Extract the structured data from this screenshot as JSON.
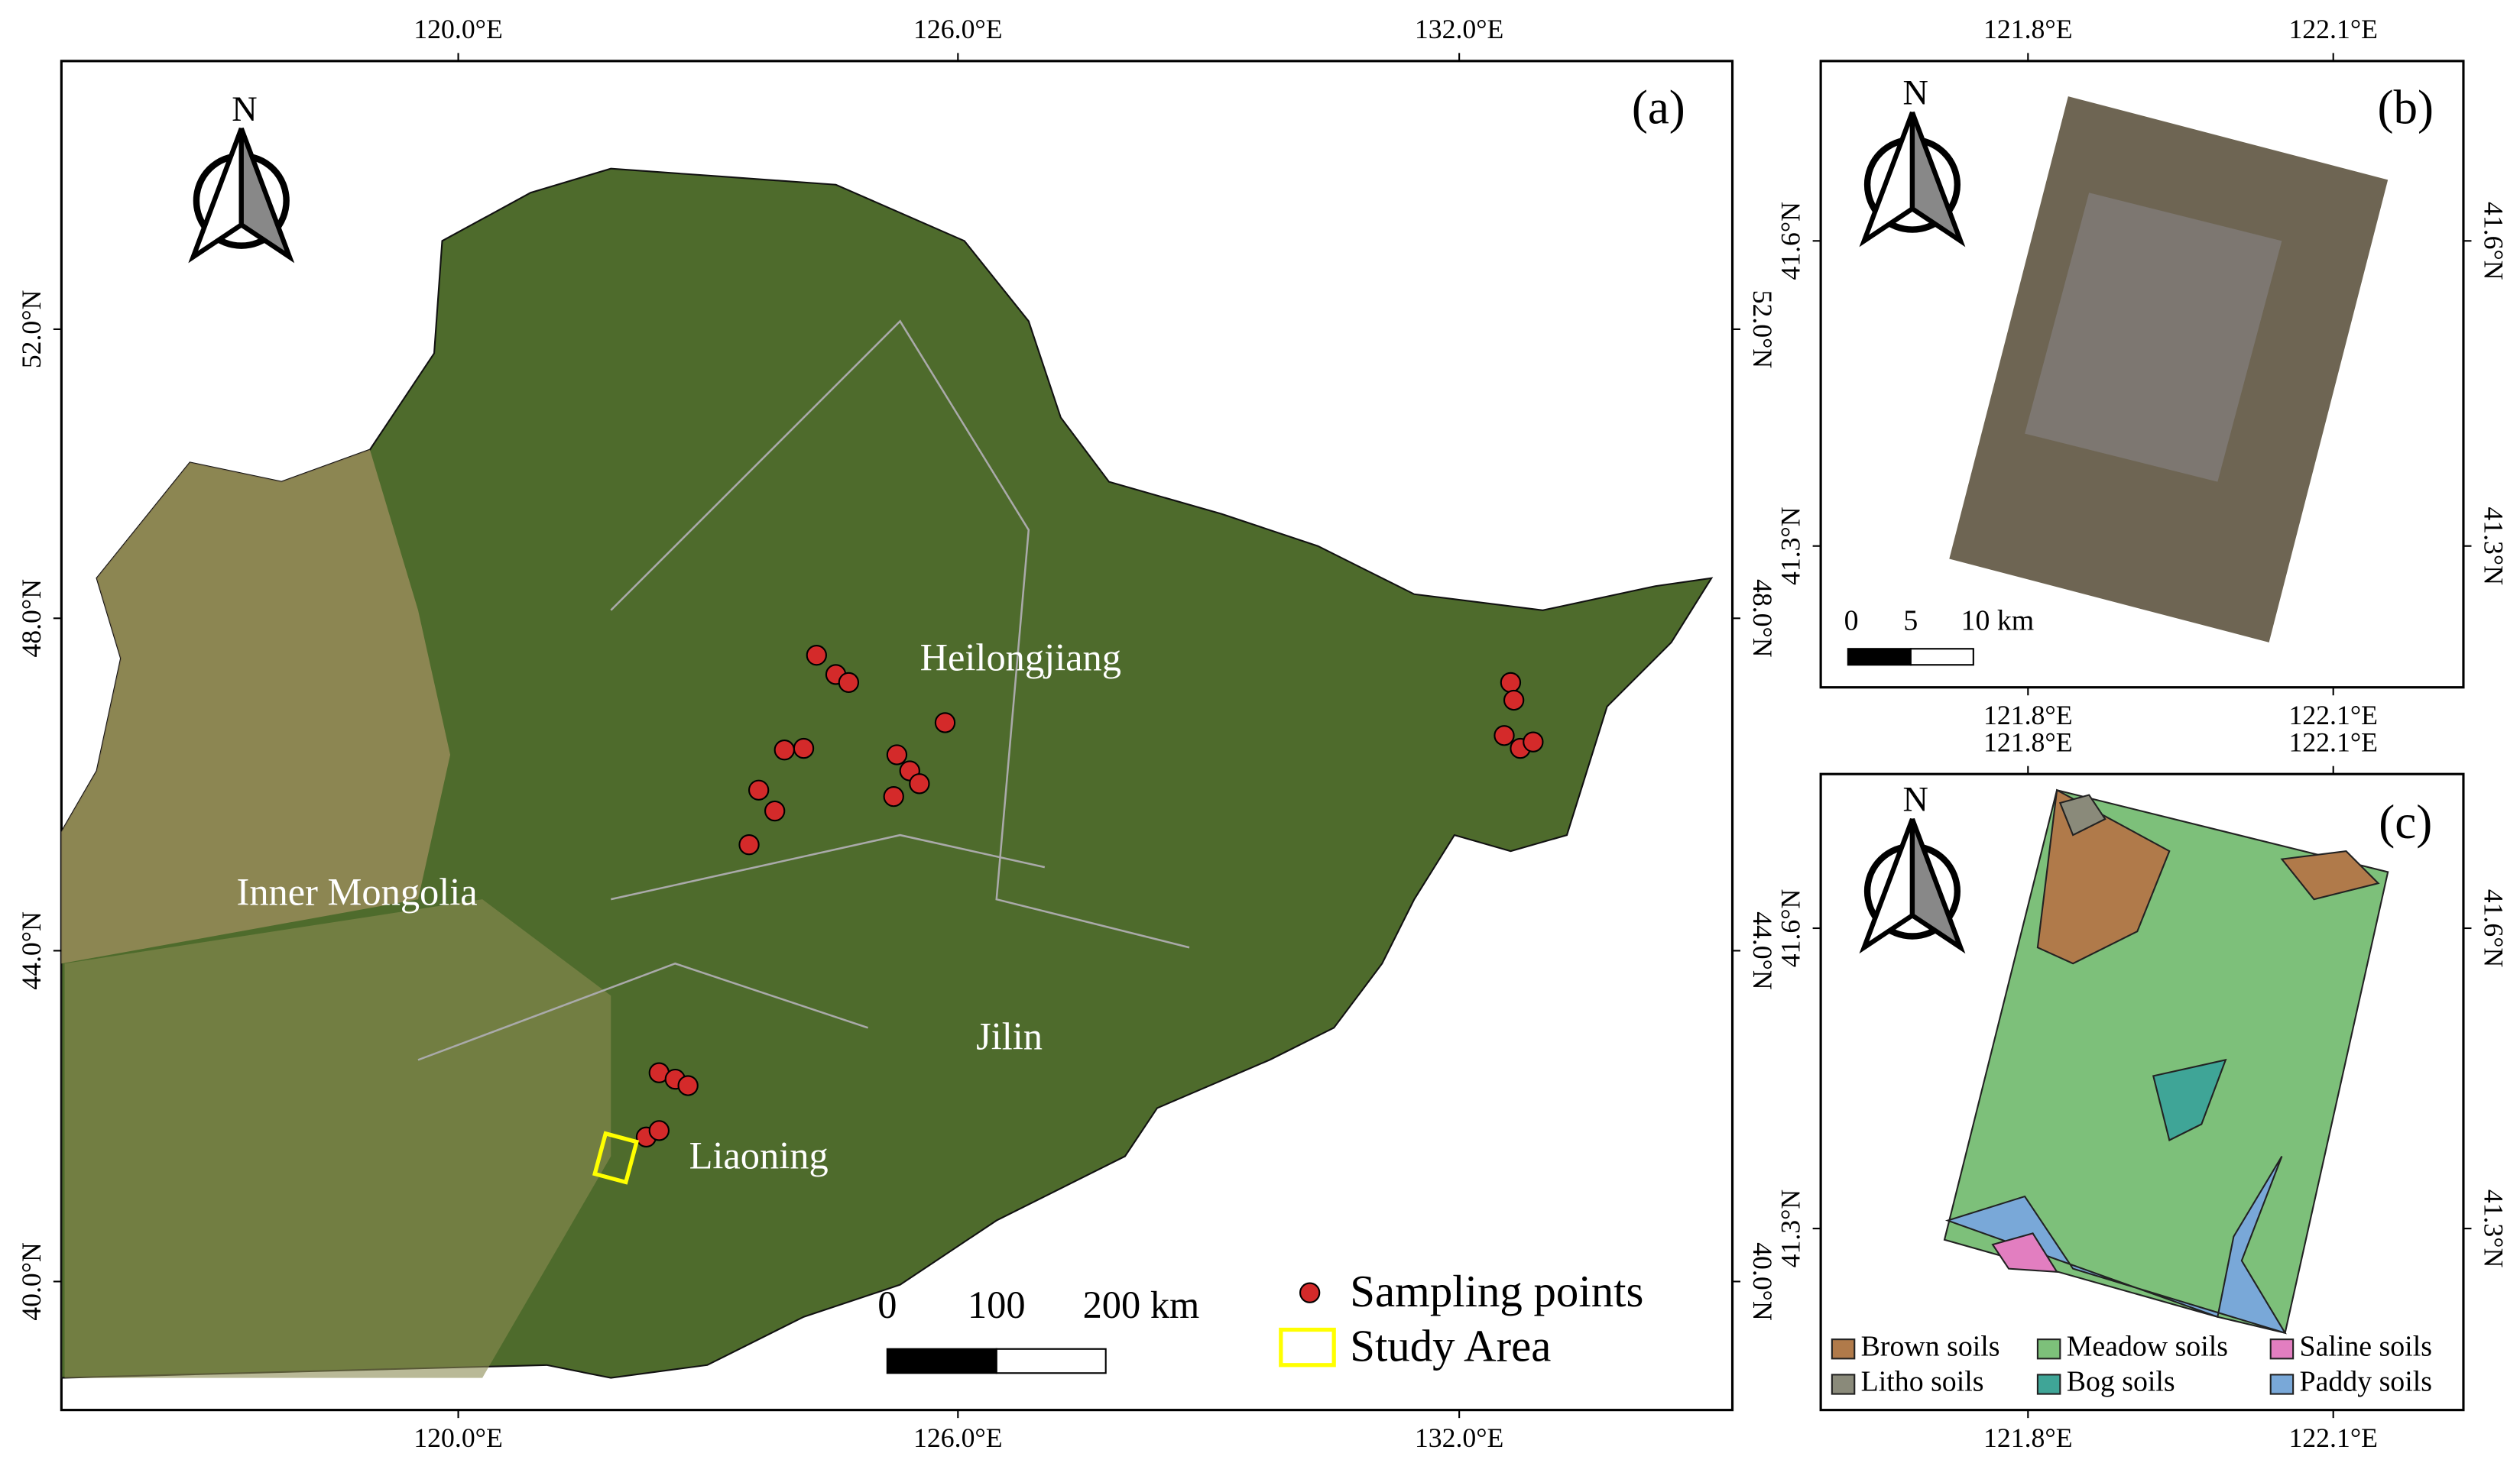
{
  "panels": [
    {
      "label": "(a)",
      "north": "N",
      "lon_ticks": [
        "120.0°E",
        "126.0°E",
        "132.0°E"
      ],
      "lat_ticks": [
        "52.0°N",
        "48.0°N",
        "44.0°N",
        "40.0°N"
      ],
      "places": [
        "Heilongjiang",
        "Inner Mongolia",
        "Jilin",
        "Liaoning"
      ],
      "scale_bar": [
        "0",
        "100",
        "200 km"
      ],
      "legend": [
        "Sampling points",
        "Study Area"
      ]
    },
    {
      "label": "(b)",
      "north": "N",
      "lon_ticks": [
        "121.8°E",
        "122.1°E"
      ],
      "lat_ticks": [
        "41.6°N",
        "41.3°N"
      ],
      "scale_bar": [
        "0",
        "5",
        "10 km"
      ]
    },
    {
      "label": "(c)",
      "north": "N",
      "lon_ticks": [
        "121.8°E",
        "122.1°E"
      ],
      "lat_ticks": [
        "41.6°N",
        "41.3°N"
      ],
      "legend": [
        "Brown soils",
        "Meadow soils",
        "Saline soils",
        "Litho soils",
        "Bog soils",
        "Paddy soils"
      ]
    }
  ]
}
